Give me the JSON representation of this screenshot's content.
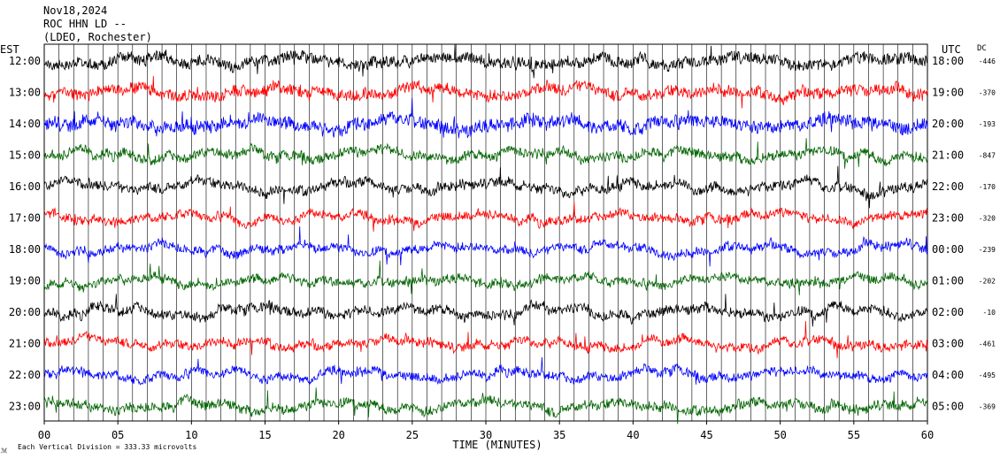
{
  "header": {
    "date": "Nov18,2024",
    "station": "ROC HHN LD --",
    "network": "(LDEO, Rochester)"
  },
  "left_label": "EST",
  "right_label": "UTC",
  "dc_label": "DC",
  "footer_label": "TIME (MINUTES)",
  "scale_note": "Each Vertical Division =  333.33 microvolts",
  "corner_mark": "ℳ",
  "colors": {
    "black": "#000000",
    "red": "#ff0000",
    "blue": "#0000ff",
    "green": "#006400"
  },
  "chart_data": {
    "type": "line",
    "xlabel": "TIME (MINUTES)",
    "x_ticks": [
      "00",
      "05",
      "10",
      "15",
      "20",
      "25",
      "30",
      "35",
      "40",
      "45",
      "50",
      "55",
      "60"
    ],
    "xlim": [
      0,
      60
    ],
    "rows": [
      {
        "est": "12:00",
        "utc": "18:00",
        "dc": "-446",
        "color": "black"
      },
      {
        "est": "13:00",
        "utc": "19:00",
        "dc": "-370",
        "color": "red"
      },
      {
        "est": "14:00",
        "utc": "20:00",
        "dc": "-193",
        "color": "blue"
      },
      {
        "est": "15:00",
        "utc": "21:00",
        "dc": "-847",
        "color": "green"
      },
      {
        "est": "16:00",
        "utc": "22:00",
        "dc": "-170",
        "color": "black"
      },
      {
        "est": "17:00",
        "utc": "23:00",
        "dc": "-320",
        "color": "red"
      },
      {
        "est": "18:00",
        "utc": "00:00",
        "dc": "-239",
        "color": "blue"
      },
      {
        "est": "19:00",
        "utc": "01:00",
        "dc": "-202",
        "color": "green"
      },
      {
        "est": "20:00",
        "utc": "02:00",
        "dc": "-10",
        "color": "black"
      },
      {
        "est": "21:00",
        "utc": "03:00",
        "dc": "-461",
        "color": "red"
      },
      {
        "est": "22:00",
        "utc": "04:00",
        "dc": "-495",
        "color": "blue"
      },
      {
        "est": "23:00",
        "utc": "05:00",
        "dc": "-369",
        "color": "green"
      }
    ]
  }
}
